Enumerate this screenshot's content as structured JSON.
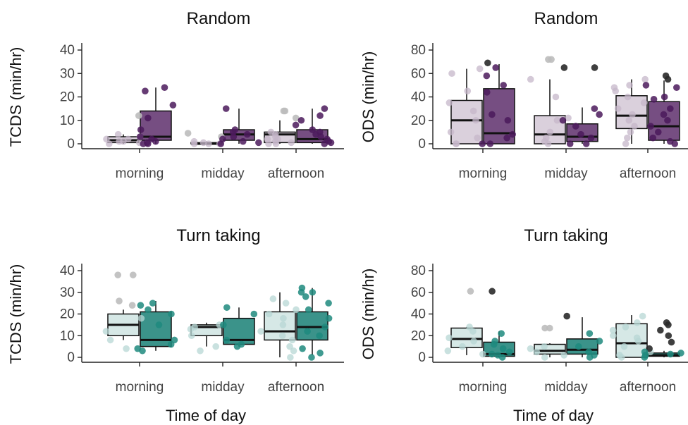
{
  "chart_data": [
    {
      "id": "tl",
      "type": "boxplot",
      "title": "Random",
      "ylabel": "TCDS (min/hr)",
      "xlabel": "",
      "ylim": [
        0,
        40
      ],
      "yticks": [
        0,
        10,
        20,
        30,
        40
      ],
      "categories": [
        "morning",
        "midday",
        "afternoon"
      ],
      "colors": {
        "light": "#d3c8d6",
        "dark": "#6a3f77",
        "point_light": "#c5b7c9",
        "point_dark": "#4b1a5c",
        "outlier_light": "#bcbcbc",
        "outlier_dark": "#3a0d4a"
      },
      "boxes": [
        {
          "category": "morning",
          "group": "light",
          "q1": 0.5,
          "median": 1.5,
          "q3": 3,
          "wlo": 0,
          "whi": 4
        },
        {
          "category": "morning",
          "group": "dark",
          "q1": 1.5,
          "median": 3,
          "q3": 14,
          "wlo": 0,
          "whi": 24
        },
        {
          "category": "midday",
          "group": "light",
          "q1": 0,
          "median": 0,
          "q3": 0.5,
          "wlo": 0,
          "whi": 1
        },
        {
          "category": "midday",
          "group": "dark",
          "q1": 1.5,
          "median": 4,
          "q3": 6,
          "wlo": 0,
          "whi": 15
        },
        {
          "category": "afternoon",
          "group": "light",
          "q1": 0.5,
          "median": 4,
          "q3": 5,
          "wlo": 0,
          "whi": 10
        },
        {
          "category": "afternoon",
          "group": "dark",
          "q1": 0.5,
          "median": 2,
          "q3": 6,
          "wlo": 0,
          "whi": 15
        }
      ],
      "points": [
        {
          "category": "morning",
          "group": "light",
          "values": [
            12,
            3,
            2,
            1,
            0.5,
            0,
            4,
            1,
            2
          ]
        },
        {
          "category": "morning",
          "group": "dark",
          "values": [
            22.5,
            6,
            16.5,
            2,
            0,
            1,
            0.5,
            3,
            24,
            11,
            0
          ]
        },
        {
          "category": "midday",
          "group": "light",
          "values": [
            4.5,
            3,
            0,
            0,
            0.5,
            1,
            0
          ]
        },
        {
          "category": "midday",
          "group": "dark",
          "values": [
            5,
            4,
            1,
            2,
            15,
            6,
            0,
            0.5,
            3
          ]
        },
        {
          "category": "afternoon",
          "group": "light",
          "values": [
            14,
            14,
            11,
            5,
            4,
            2,
            1,
            0.5,
            0,
            3,
            0,
            2
          ]
        },
        {
          "category": "afternoon",
          "group": "dark",
          "values": [
            5,
            8,
            10,
            3,
            0,
            1,
            2,
            15,
            12,
            4,
            6,
            0.5
          ]
        }
      ]
    },
    {
      "id": "tr",
      "type": "boxplot",
      "title": "Random",
      "ylabel": "ODS (min/hr)",
      "xlabel": "",
      "ylim": [
        0,
        80
      ],
      "yticks": [
        0,
        20,
        40,
        60,
        80
      ],
      "categories": [
        "morning",
        "midday",
        "afternoon"
      ],
      "colors": {
        "light": "#d3c8d6",
        "dark": "#6a3f77",
        "point_light": "#c5b7c9",
        "point_dark": "#4b1a5c",
        "outlier_light": "#bcbcbc",
        "outlier_dark": "#2a2a2a"
      },
      "boxes": [
        {
          "category": "morning",
          "group": "light",
          "q1": 0,
          "median": 20,
          "q3": 37,
          "wlo": 0,
          "whi": 64
        },
        {
          "category": "morning",
          "group": "dark",
          "q1": 0,
          "median": 9,
          "q3": 47,
          "wlo": 0,
          "whi": 68
        },
        {
          "category": "midday",
          "group": "light",
          "q1": 0,
          "median": 8,
          "q3": 24,
          "wlo": 0,
          "whi": 55
        },
        {
          "category": "midday",
          "group": "dark",
          "q1": 2,
          "median": 6,
          "q3": 17,
          "wlo": 0,
          "whi": 31
        },
        {
          "category": "afternoon",
          "group": "light",
          "q1": 13,
          "median": 24,
          "q3": 41,
          "wlo": 0,
          "whi": 55
        },
        {
          "category": "afternoon",
          "group": "dark",
          "q1": 3,
          "median": 15,
          "q3": 36,
          "wlo": 0,
          "whi": 54
        }
      ],
      "points": [
        {
          "category": "morning",
          "group": "light",
          "values": [
            60,
            64,
            20,
            35,
            0,
            10,
            5,
            0,
            45,
            28
          ]
        },
        {
          "category": "morning",
          "group": "dark",
          "values": [
            69,
            65,
            58,
            50,
            44,
            20,
            8,
            0,
            5,
            25,
            0
          ]
        },
        {
          "category": "midday",
          "group": "light",
          "values": [
            72,
            72,
            55,
            40,
            20,
            10,
            0,
            5,
            22,
            2
          ]
        },
        {
          "category": "midday",
          "group": "dark",
          "values": [
            65,
            65,
            30,
            20,
            8,
            0,
            5,
            15,
            25,
            0
          ]
        },
        {
          "category": "afternoon",
          "group": "light",
          "values": [
            55,
            50,
            48,
            40,
            30,
            25,
            20,
            10,
            5,
            0,
            35,
            45,
            15
          ]
        },
        {
          "category": "afternoon",
          "group": "dark",
          "values": [
            55,
            50,
            40,
            38,
            30,
            20,
            15,
            10,
            5,
            0,
            58,
            48,
            25,
            2
          ]
        }
      ]
    },
    {
      "id": "bl",
      "type": "boxplot",
      "title": "Turn taking",
      "ylabel": "TCDS (min/hr)",
      "xlabel": "Time of day",
      "ylim": [
        0,
        40
      ],
      "yticks": [
        0,
        10,
        20,
        30,
        40
      ],
      "categories": [
        "morning",
        "midday",
        "afternoon"
      ],
      "colors": {
        "light": "#cfe4e2",
        "dark": "#2a8a80",
        "point_light": "#b7d7d4",
        "point_dark": "#1f8a7e",
        "outlier_light": "#bcbcbc",
        "outlier_dark": "#1f8a7e"
      },
      "boxes": [
        {
          "category": "morning",
          "group": "light",
          "q1": 10,
          "median": 15,
          "q3": 20,
          "wlo": 8,
          "whi": 22
        },
        {
          "category": "morning",
          "group": "dark",
          "q1": 5,
          "median": 8,
          "q3": 21,
          "wlo": 3,
          "whi": 26
        },
        {
          "category": "midday",
          "group": "light",
          "q1": 10,
          "median": 14,
          "q3": 15,
          "wlo": 5,
          "whi": 16
        },
        {
          "category": "midday",
          "group": "dark",
          "q1": 6,
          "median": 8,
          "q3": 18,
          "wlo": 5,
          "whi": 23
        },
        {
          "category": "afternoon",
          "group": "light",
          "q1": 8,
          "median": 12,
          "q3": 21,
          "wlo": 0,
          "whi": 30
        },
        {
          "category": "afternoon",
          "group": "dark",
          "q1": 8,
          "median": 14,
          "q3": 21,
          "wlo": 1,
          "whi": 32
        }
      ],
      "points": [
        {
          "category": "morning",
          "group": "light",
          "values": [
            38,
            38,
            26,
            24,
            4,
            12,
            8,
            18
          ]
        },
        {
          "category": "morning",
          "group": "dark",
          "values": [
            25,
            24,
            22,
            20,
            8,
            4,
            6,
            3,
            15
          ]
        },
        {
          "category": "midday",
          "group": "light",
          "values": [
            15,
            13,
            3,
            10,
            14,
            5
          ]
        },
        {
          "category": "midday",
          "group": "dark",
          "values": [
            23,
            20,
            8,
            5,
            6,
            15
          ]
        },
        {
          "category": "afternoon",
          "group": "light",
          "values": [
            27,
            25,
            22,
            20,
            15,
            12,
            10,
            5,
            3,
            0,
            18,
            8
          ]
        },
        {
          "category": "afternoon",
          "group": "dark",
          "values": [
            32,
            30,
            28,
            22,
            18,
            14,
            10,
            4,
            2,
            0,
            25,
            12,
            30
          ]
        }
      ]
    },
    {
      "id": "br",
      "type": "boxplot",
      "title": "Turn taking",
      "ylabel": "ODS (min/hr)",
      "xlabel": "Time of day",
      "ylim": [
        0,
        80
      ],
      "yticks": [
        0,
        20,
        40,
        60,
        80
      ],
      "categories": [
        "morning",
        "midday",
        "afternoon"
      ],
      "colors": {
        "light": "#cfe4e2",
        "dark": "#2a8a80",
        "point_light": "#b7d7d4",
        "point_dark": "#1f8a7e",
        "outlier_light": "#bcbcbc",
        "outlier_dark": "#2a2a2a"
      },
      "boxes": [
        {
          "category": "morning",
          "group": "light",
          "q1": 9,
          "median": 17,
          "q3": 27,
          "wlo": 2,
          "whi": 28
        },
        {
          "category": "morning",
          "group": "dark",
          "q1": 1,
          "median": 3,
          "q3": 14,
          "wlo": 0,
          "whi": 24
        },
        {
          "category": "midday",
          "group": "light",
          "q1": 3,
          "median": 6,
          "q3": 12,
          "wlo": 0,
          "whi": 13
        },
        {
          "category": "midday",
          "group": "dark",
          "q1": 3,
          "median": 7,
          "q3": 17,
          "wlo": 0,
          "whi": 37
        },
        {
          "category": "afternoon",
          "group": "light",
          "q1": 0,
          "median": 13,
          "q3": 31,
          "wlo": 0,
          "whi": 39
        },
        {
          "category": "afternoon",
          "group": "dark",
          "q1": 1,
          "median": 2,
          "q3": 4,
          "wlo": 0,
          "whi": 6
        }
      ],
      "points": [
        {
          "category": "morning",
          "group": "light",
          "values": [
            61,
            24,
            18,
            10,
            3,
            6,
            28,
            15
          ]
        },
        {
          "category": "morning",
          "group": "dark",
          "values": [
            61,
            22,
            15,
            12,
            5,
            2,
            0,
            8,
            3
          ]
        },
        {
          "category": "midday",
          "group": "light",
          "values": [
            27,
            27,
            10,
            5,
            2,
            8,
            0
          ]
        },
        {
          "category": "midday",
          "group": "dark",
          "values": [
            38,
            22,
            10,
            5,
            2,
            0,
            15
          ]
        },
        {
          "category": "afternoon",
          "group": "light",
          "values": [
            38,
            32,
            28,
            20,
            15,
            10,
            5,
            2,
            0,
            25,
            18
          ]
        },
        {
          "category": "afternoon",
          "group": "dark",
          "values": [
            32,
            30,
            25,
            14,
            8,
            4,
            2,
            0,
            20,
            5,
            3
          ]
        }
      ]
    }
  ]
}
